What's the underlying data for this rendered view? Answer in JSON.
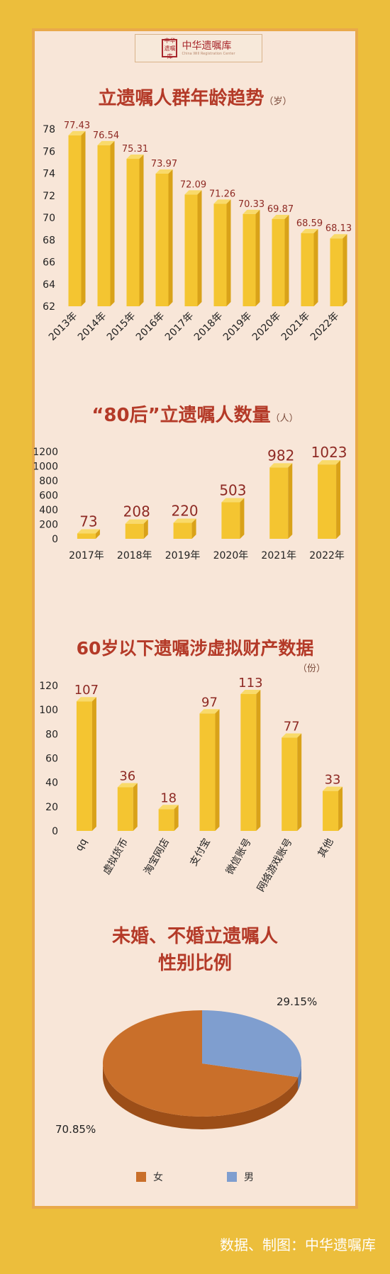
{
  "logo": {
    "text": "中华遗嘱库",
    "seal": "中华遗嘱库",
    "en": "China Will Registration Center"
  },
  "charts": {
    "age": {
      "title": "立遗嘱人群年龄趋势",
      "unit": "（岁）",
      "color": "#F3C233"
    },
    "post80": {
      "title": "“80后”立遗嘱人数量",
      "unit": "（人）",
      "color": "#F3C233"
    },
    "virtual": {
      "title": "60岁以下遗嘱涉虚拟财产数据",
      "unit": "（份）",
      "color": "#F3C233"
    },
    "gender": {
      "title_line1": "未婚、不婚立遗嘱人",
      "title_line2": "性别比例",
      "colors": {
        "female": "#C96F2A",
        "male": "#7F9ECF"
      }
    }
  },
  "chart_data": [
    {
      "type": "bar",
      "title": "立遗嘱人群年龄趋势",
      "unit": "（岁）",
      "categories": [
        "2013年",
        "2014年",
        "2015年",
        "2016年",
        "2017年",
        "2018年",
        "2019年",
        "2020年",
        "2021年",
        "2022年"
      ],
      "values": [
        77.43,
        76.54,
        75.31,
        73.97,
        72.09,
        71.26,
        70.33,
        69.87,
        68.59,
        68.13
      ],
      "value_labels": [
        "77.43",
        "76.54",
        "75.31",
        "73.97",
        "72.09",
        "71.26",
        "70.33",
        "69.87",
        "68.59",
        "68.13"
      ],
      "ylim": [
        62,
        78
      ],
      "yticks": [
        62,
        64,
        66,
        68,
        70,
        72,
        74,
        76,
        78
      ],
      "grid": false
    },
    {
      "type": "bar",
      "title": "“80后”立遗嘱人数量",
      "unit": "（人）",
      "categories": [
        "2017年",
        "2018年",
        "2019年",
        "2020年",
        "2021年",
        "2022年"
      ],
      "values": [
        73,
        208,
        220,
        503,
        982,
        1023
      ],
      "ylim": [
        0,
        1200
      ],
      "yticks": [
        0,
        200,
        400,
        600,
        800,
        1000,
        1200
      ],
      "grid": false
    },
    {
      "type": "bar",
      "title": "60岁以下遗嘱涉虚拟财产数据",
      "unit": "（份）",
      "categories": [
        "qq",
        "虚拟货币",
        "淘宝网店",
        "支付宝",
        "微信账号",
        "网络游戏账号",
        "其他"
      ],
      "values": [
        107,
        36,
        18,
        97,
        113,
        77,
        33
      ],
      "ylim": [
        0,
        120
      ],
      "yticks": [
        0,
        20,
        40,
        60,
        80,
        100,
        120
      ],
      "grid": false
    },
    {
      "type": "pie",
      "title": "未婚、不婚立遗嘱人 性别比例",
      "labels": [
        "女",
        "男"
      ],
      "values": [
        70.85,
        29.15
      ],
      "value_labels": [
        "70.85%",
        "29.15%"
      ],
      "legend": "bottom"
    }
  ],
  "footer": "数据、制图：中华遗嘱库"
}
